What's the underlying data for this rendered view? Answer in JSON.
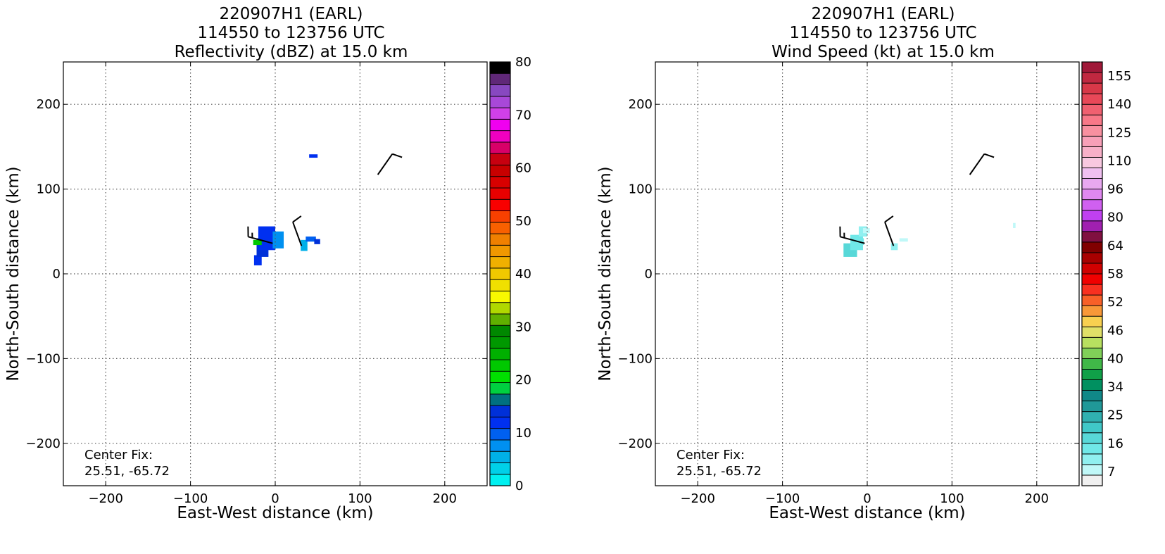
{
  "chart_data": [
    {
      "type": "heatmap",
      "title_lines": [
        "220907H1 (EARL)",
        "114550 to 123756 UTC",
        "Reflectivity (dBZ) at 15.0 km"
      ],
      "xlabel": "East-West distance (km)",
      "ylabel": "North-South distance (km)",
      "xlim": [
        -250,
        250
      ],
      "ylim": [
        -250,
        250
      ],
      "xticks": [
        -200,
        -100,
        0,
        100,
        200
      ],
      "yticks": [
        -200,
        -100,
        0,
        100,
        200
      ],
      "grid": true,
      "annotation_lines": [
        "Center Fix:",
        "25.51, -65.72"
      ],
      "colorbar": {
        "min": 0,
        "max": 80,
        "tick_values": [
          0,
          10,
          20,
          30,
          40,
          50,
          60,
          70,
          80
        ],
        "tick_labels": [
          "0",
          "10",
          "20",
          "30",
          "40",
          "50",
          "60",
          "70",
          "80"
        ],
        "colors": [
          "#00f0f0",
          "#00d0e8",
          "#00b0e8",
          "#0090f0",
          "#0060f0",
          "#0030f0",
          "#0030d8",
          "#007080",
          "#00d040",
          "#00e000",
          "#00c800",
          "#00b000",
          "#009800",
          "#008800",
          "#60b000",
          "#b0d800",
          "#f8f800",
          "#f0e000",
          "#f0c800",
          "#f0b000",
          "#f09800",
          "#f08000",
          "#f86000",
          "#f84000",
          "#f80000",
          "#e80000",
          "#d80000",
          "#c80000",
          "#c80010",
          "#d80068",
          "#f000c0",
          "#f000f0",
          "#d040e8",
          "#a848d8",
          "#8848c0",
          "#602878",
          "#000000"
        ]
      },
      "regions": [
        {
          "x": [
            -25,
            -16
          ],
          "y": [
            10,
            22
          ],
          "value": 12
        },
        {
          "x": [
            -22,
            -8
          ],
          "y": [
            20,
            42
          ],
          "value": 14
        },
        {
          "x": [
            -20,
            0
          ],
          "y": [
            28,
            56
          ],
          "value": 12
        },
        {
          "x": [
            -3,
            10
          ],
          "y": [
            30,
            50
          ],
          "value": 8
        },
        {
          "x": [
            -26,
            -16
          ],
          "y": [
            34,
            40
          ],
          "value": 22
        },
        {
          "x": [
            30,
            38
          ],
          "y": [
            27,
            40
          ],
          "value": 6
        },
        {
          "x": [
            36,
            48
          ],
          "y": [
            38,
            44
          ],
          "value": 9
        },
        {
          "x": [
            46,
            53
          ],
          "y": [
            35,
            41
          ],
          "value": 13
        },
        {
          "x": [
            40,
            50
          ],
          "y": [
            137,
            141
          ],
          "value": 12
        }
      ],
      "wind_barbs": [
        {
          "x": -3,
          "y": 36,
          "speed_kt": 15,
          "dir_deg": 285
        },
        {
          "x": 31,
          "y": 33,
          "speed_kt": 10,
          "dir_deg": 340
        },
        {
          "x": 121,
          "y": 117,
          "speed_kt": 10,
          "dir_deg": 35
        }
      ]
    },
    {
      "type": "heatmap",
      "title_lines": [
        "220907H1 (EARL)",
        "114550 to 123756 UTC",
        "Wind Speed (kt) at 15.0 km"
      ],
      "xlabel": "East-West distance (km)",
      "ylabel": "North-South distance (km)",
      "xlim": [
        -250,
        250
      ],
      "ylim": [
        -250,
        250
      ],
      "xticks": [
        -200,
        -100,
        0,
        100,
        200
      ],
      "yticks": [
        -200,
        -100,
        0,
        100,
        200
      ],
      "grid": true,
      "annotation_lines": [
        "Center Fix:",
        "25.51, -65.72"
      ],
      "colorbar": {
        "min": 7,
        "max": 160,
        "tick_values": [
          7,
          16,
          25,
          34,
          40,
          46,
          52,
          58,
          64,
          80,
          96,
          110,
          125,
          140,
          155
        ],
        "tick_labels": [
          "7",
          "16",
          "25",
          "34",
          "40",
          "46",
          "52",
          "58",
          "64",
          "80",
          "96",
          "110",
          "125",
          "140",
          "155"
        ],
        "colors": [
          "#f0f0f0",
          "#c0f8f8",
          "#90f0f0",
          "#70e8e8",
          "#58d8d8",
          "#40c8c8",
          "#30b0b0",
          "#209898",
          "#108888",
          "#009060",
          "#10a048",
          "#40b848",
          "#80d058",
          "#b8e060",
          "#e0e068",
          "#f8d050",
          "#f89838",
          "#f86028",
          "#f83020",
          "#f00000",
          "#d00000",
          "#a80000",
          "#800000",
          "#801040",
          "#a020b0",
          "#c040f0",
          "#d060f0",
          "#e088f0",
          "#e8a8f0",
          "#f0c0f0",
          "#f8c8e0",
          "#f8b0c8",
          "#f8a0b8",
          "#f890a0",
          "#f87888",
          "#f06070",
          "#e84858",
          "#d83848",
          "#c02840",
          "#a01838"
        ]
      },
      "regions": [
        {
          "x": [
            -28,
            -12
          ],
          "y": [
            20,
            36
          ],
          "value": 24
        },
        {
          "x": [
            -20,
            -5
          ],
          "y": [
            28,
            46
          ],
          "value": 22
        },
        {
          "x": [
            -10,
            0
          ],
          "y": [
            44,
            56
          ],
          "value": 16
        },
        {
          "x": [
            -5,
            3
          ],
          "y": [
            48,
            54
          ],
          "value": 13
        },
        {
          "x": [
            -12,
            -4
          ],
          "y": [
            34,
            42
          ],
          "value": 19
        },
        {
          "x": [
            28,
            36
          ],
          "y": [
            28,
            36
          ],
          "value": 18
        },
        {
          "x": [
            38,
            48
          ],
          "y": [
            38,
            42
          ],
          "value": 13
        },
        {
          "x": [
            172,
            175
          ],
          "y": [
            54,
            60
          ],
          "value": 14
        }
      ],
      "wind_barbs": [
        {
          "x": -3,
          "y": 36,
          "speed_kt": 15,
          "dir_deg": 285
        },
        {
          "x": 31,
          "y": 33,
          "speed_kt": 10,
          "dir_deg": 340
        },
        {
          "x": 121,
          "y": 117,
          "speed_kt": 10,
          "dir_deg": 35
        }
      ]
    }
  ]
}
